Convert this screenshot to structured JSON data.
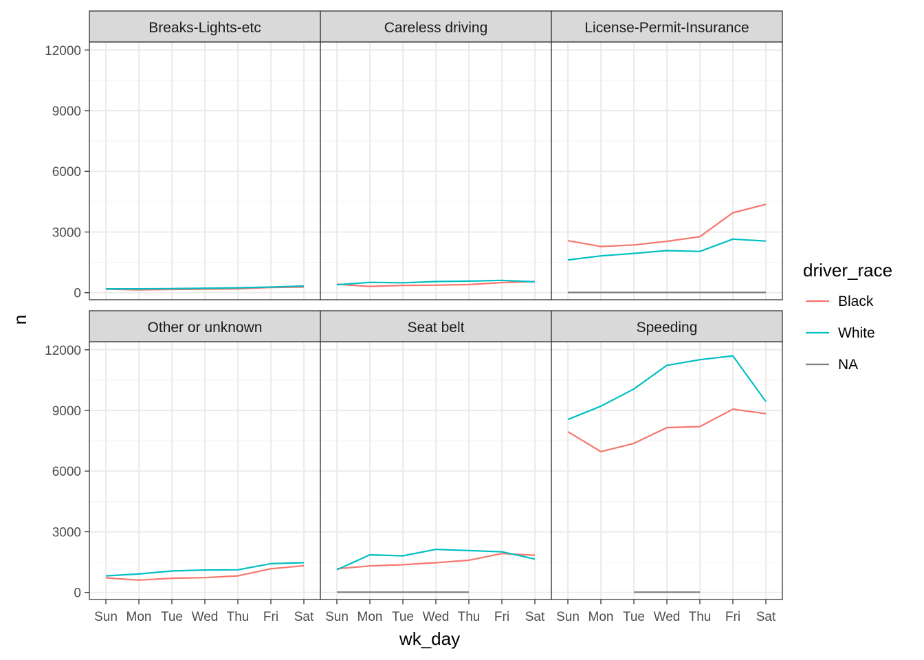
{
  "chart_data": {
    "type": "line",
    "facet_layout": "2x3",
    "x": [
      "Sun",
      "Mon",
      "Tue",
      "Wed",
      "Thu",
      "Fri",
      "Sat"
    ],
    "xlabel": "wk_day",
    "ylabel": "n",
    "ylim": [
      -350,
      12400
    ],
    "y_ticks": [
      0,
      3000,
      6000,
      9000,
      12000
    ],
    "grid": true,
    "legend": {
      "title": "driver_race",
      "placement": "right",
      "entries": [
        {
          "name": "Black",
          "color": "#F8766D"
        },
        {
          "name": "White",
          "color": "#00BFC4"
        },
        {
          "name": "NA",
          "color": "#7F7F7F"
        }
      ]
    },
    "panels": [
      {
        "title": "Breaks-Lights-etc",
        "series": [
          {
            "name": "Black",
            "values": [
              170,
              140,
              160,
              170,
              190,
              260,
              280
            ]
          },
          {
            "name": "White",
            "values": [
              190,
              190,
              200,
              220,
              240,
              280,
              330
            ]
          }
        ]
      },
      {
        "title": "Careless driving",
        "series": [
          {
            "name": "Black",
            "values": [
              420,
              310,
              360,
              370,
              400,
              500,
              550
            ]
          },
          {
            "name": "White",
            "values": [
              390,
              510,
              490,
              550,
              570,
              610,
              540
            ]
          }
        ]
      },
      {
        "title": "License-Permit-Insurance",
        "series": [
          {
            "name": "Black",
            "values": [
              2570,
              2280,
              2360,
              2540,
              2770,
              3950,
              4370
            ]
          },
          {
            "name": "White",
            "values": [
              1620,
              1820,
              1940,
              2080,
              2040,
              2650,
              2550
            ]
          },
          {
            "name": "NA",
            "values": [
              10,
              10,
              10,
              10,
              10,
              10,
              10
            ]
          }
        ]
      },
      {
        "title": "Other or unknown",
        "series": [
          {
            "name": "Black",
            "values": [
              720,
              610,
              700,
              730,
              820,
              1170,
              1320
            ]
          },
          {
            "name": "White",
            "values": [
              820,
              910,
              1060,
              1110,
              1120,
              1420,
              1470
            ]
          }
        ]
      },
      {
        "title": "Seat belt",
        "series": [
          {
            "name": "Black",
            "values": [
              1170,
              1310,
              1370,
              1470,
              1590,
              1920,
              1840
            ]
          },
          {
            "name": "White",
            "values": [
              1120,
              1860,
              1810,
              2130,
              2070,
              2010,
              1650
            ]
          },
          {
            "name": "NA",
            "values": [
              10,
              10,
              10,
              10,
              10,
              null,
              null
            ]
          }
        ]
      },
      {
        "title": "Speeding",
        "series": [
          {
            "name": "Black",
            "values": [
              7950,
              6960,
              7370,
              8150,
              8200,
              9060,
              8840
            ]
          },
          {
            "name": "White",
            "values": [
              8550,
              9210,
              10060,
              11230,
              11510,
              11700,
              9440
            ]
          },
          {
            "name": "NA",
            "values": [
              null,
              null,
              10,
              10,
              10,
              null,
              null
            ]
          }
        ]
      }
    ]
  }
}
